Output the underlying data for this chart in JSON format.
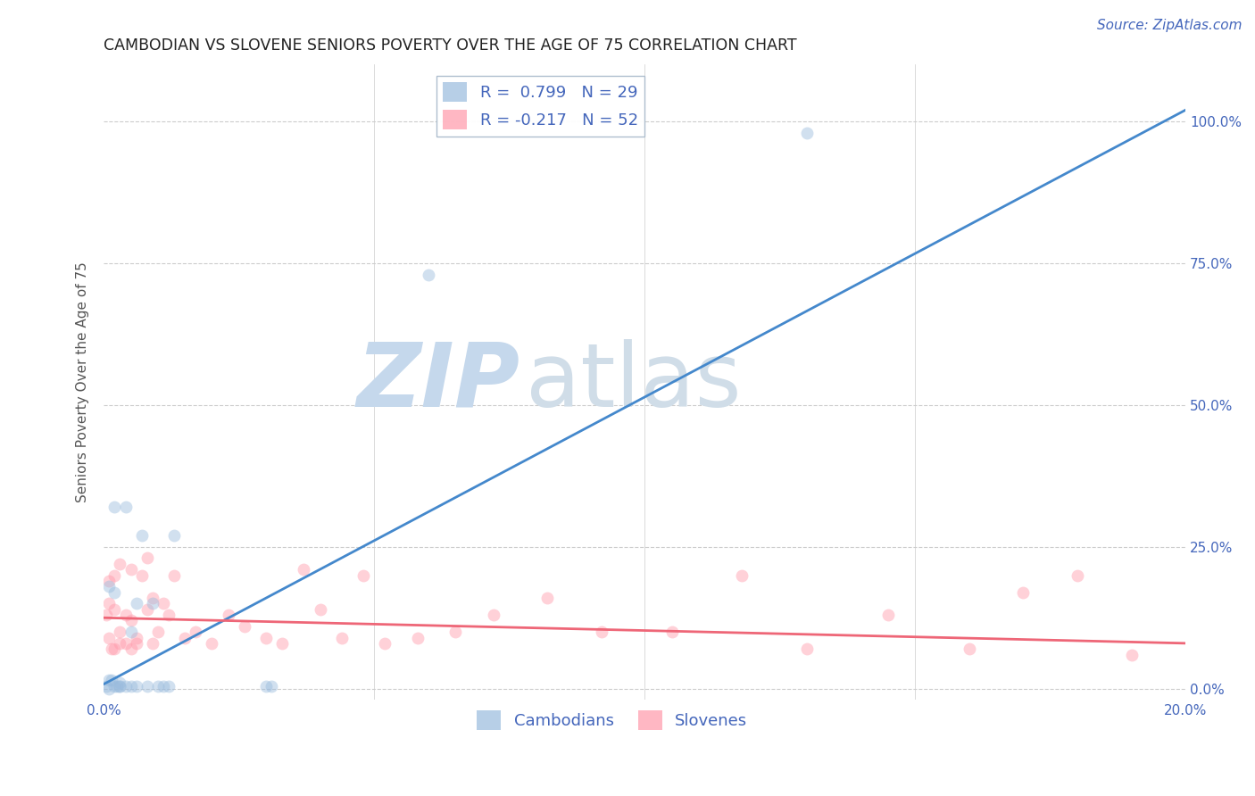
{
  "title": "CAMBODIAN VS SLOVENE SENIORS POVERTY OVER THE AGE OF 75 CORRELATION CHART",
  "source": "Source: ZipAtlas.com",
  "ylabel": "Seniors Poverty Over the Age of 75",
  "xlim": [
    0.0,
    0.2
  ],
  "ylim": [
    -0.02,
    1.1
  ],
  "xticks": [
    0.0,
    0.2
  ],
  "xticklabels": [
    "0.0%",
    "20.0%"
  ],
  "yticks": [
    0.0,
    0.25,
    0.5,
    0.75,
    1.0
  ],
  "yticklabels": [
    "0.0%",
    "25.0%",
    "50.0%",
    "75.0%",
    "100.0%"
  ],
  "blue_color": "#99BBDD",
  "pink_color": "#FF99AA",
  "blue_line_color": "#4488CC",
  "pink_line_color": "#EE6677",
  "legend_blue_label": "R =  0.799   N = 29",
  "legend_pink_label": "R = -0.217   N = 52",
  "watermark_zip": "ZIP",
  "watermark_atlas": "atlas",
  "watermark_color": "#C5D8EC",
  "title_color": "#222222",
  "axis_color": "#4466BB",
  "tick_color": "#4466BB",
  "grid_color": "#CCCCCC",
  "cambodian_x": [
    0.0005,
    0.001,
    0.001,
    0.001,
    0.0015,
    0.002,
    0.002,
    0.002,
    0.0025,
    0.003,
    0.003,
    0.003,
    0.004,
    0.004,
    0.005,
    0.005,
    0.006,
    0.006,
    0.007,
    0.008,
    0.009,
    0.01,
    0.011,
    0.012,
    0.013,
    0.03,
    0.031,
    0.06,
    0.13
  ],
  "cambodian_y": [
    0.005,
    0.0,
    0.015,
    0.18,
    0.015,
    0.17,
    0.005,
    0.32,
    0.005,
    0.005,
    0.01,
    0.005,
    0.32,
    0.005,
    0.1,
    0.005,
    0.15,
    0.005,
    0.27,
    0.005,
    0.15,
    0.005,
    0.005,
    0.005,
    0.27,
    0.005,
    0.005,
    0.73,
    0.98
  ],
  "slovene_x": [
    0.0005,
    0.001,
    0.001,
    0.001,
    0.0015,
    0.002,
    0.002,
    0.002,
    0.003,
    0.003,
    0.003,
    0.004,
    0.004,
    0.005,
    0.005,
    0.005,
    0.006,
    0.006,
    0.007,
    0.008,
    0.008,
    0.009,
    0.009,
    0.01,
    0.011,
    0.012,
    0.013,
    0.015,
    0.017,
    0.02,
    0.023,
    0.026,
    0.03,
    0.033,
    0.037,
    0.04,
    0.044,
    0.048,
    0.052,
    0.058,
    0.065,
    0.072,
    0.082,
    0.092,
    0.105,
    0.118,
    0.13,
    0.145,
    0.16,
    0.17,
    0.18,
    0.19
  ],
  "slovene_y": [
    0.13,
    0.09,
    0.15,
    0.19,
    0.07,
    0.14,
    0.2,
    0.07,
    0.22,
    0.1,
    0.08,
    0.13,
    0.08,
    0.07,
    0.12,
    0.21,
    0.09,
    0.08,
    0.2,
    0.23,
    0.14,
    0.16,
    0.08,
    0.1,
    0.15,
    0.13,
    0.2,
    0.09,
    0.1,
    0.08,
    0.13,
    0.11,
    0.09,
    0.08,
    0.21,
    0.14,
    0.09,
    0.2,
    0.08,
    0.09,
    0.1,
    0.13,
    0.16,
    0.1,
    0.1,
    0.2,
    0.07,
    0.13,
    0.07,
    0.17,
    0.2,
    0.06
  ],
  "blue_line_x": [
    0.0,
    0.2
  ],
  "blue_line_y": [
    0.008,
    1.02
  ],
  "pink_line_x": [
    0.0,
    0.2
  ],
  "pink_line_y": [
    0.125,
    0.08
  ],
  "marker_size": 100,
  "marker_alpha": 0.45,
  "line_width": 2.0,
  "title_fontsize": 12.5,
  "label_fontsize": 11,
  "tick_fontsize": 11,
  "legend_fontsize": 13,
  "source_fontsize": 11
}
